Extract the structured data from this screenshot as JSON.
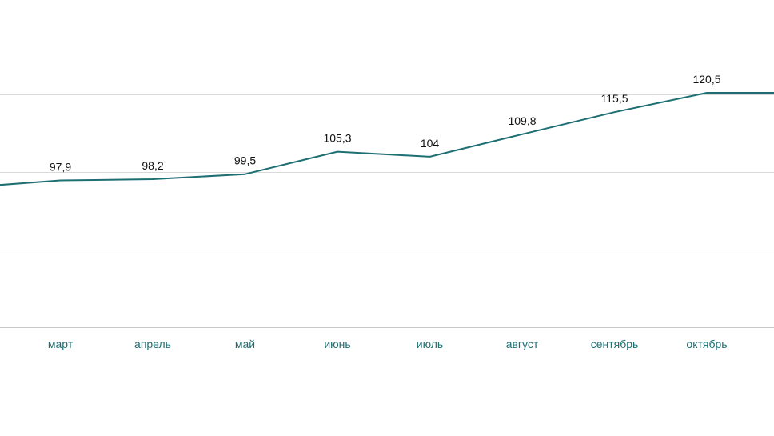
{
  "chart_data": {
    "type": "line",
    "categories": [
      "",
      "март",
      "апрель",
      "май",
      "июнь",
      "июль",
      "август",
      "сентябрь",
      "октябрь",
      ""
    ],
    "series": [
      {
        "values": [
          96.1,
          97.9,
          98.2,
          99.5,
          105.3,
          104,
          109.8,
          115.5,
          120.5,
          120.5
        ]
      }
    ],
    "data_labels": [
      "",
      "97,9",
      "98,2",
      "99,5",
      "105,3",
      "104",
      "109,8",
      "115,5",
      "120,5",
      ""
    ],
    "ylim": [
      60,
      130
    ],
    "y_gridlines": [
      60,
      80,
      100,
      120
    ],
    "grid": true,
    "legend": "none",
    "colors": {
      "line": "#1e6f73",
      "tick_labels": "#1e6f73",
      "grid": "#d9d9d9"
    }
  }
}
